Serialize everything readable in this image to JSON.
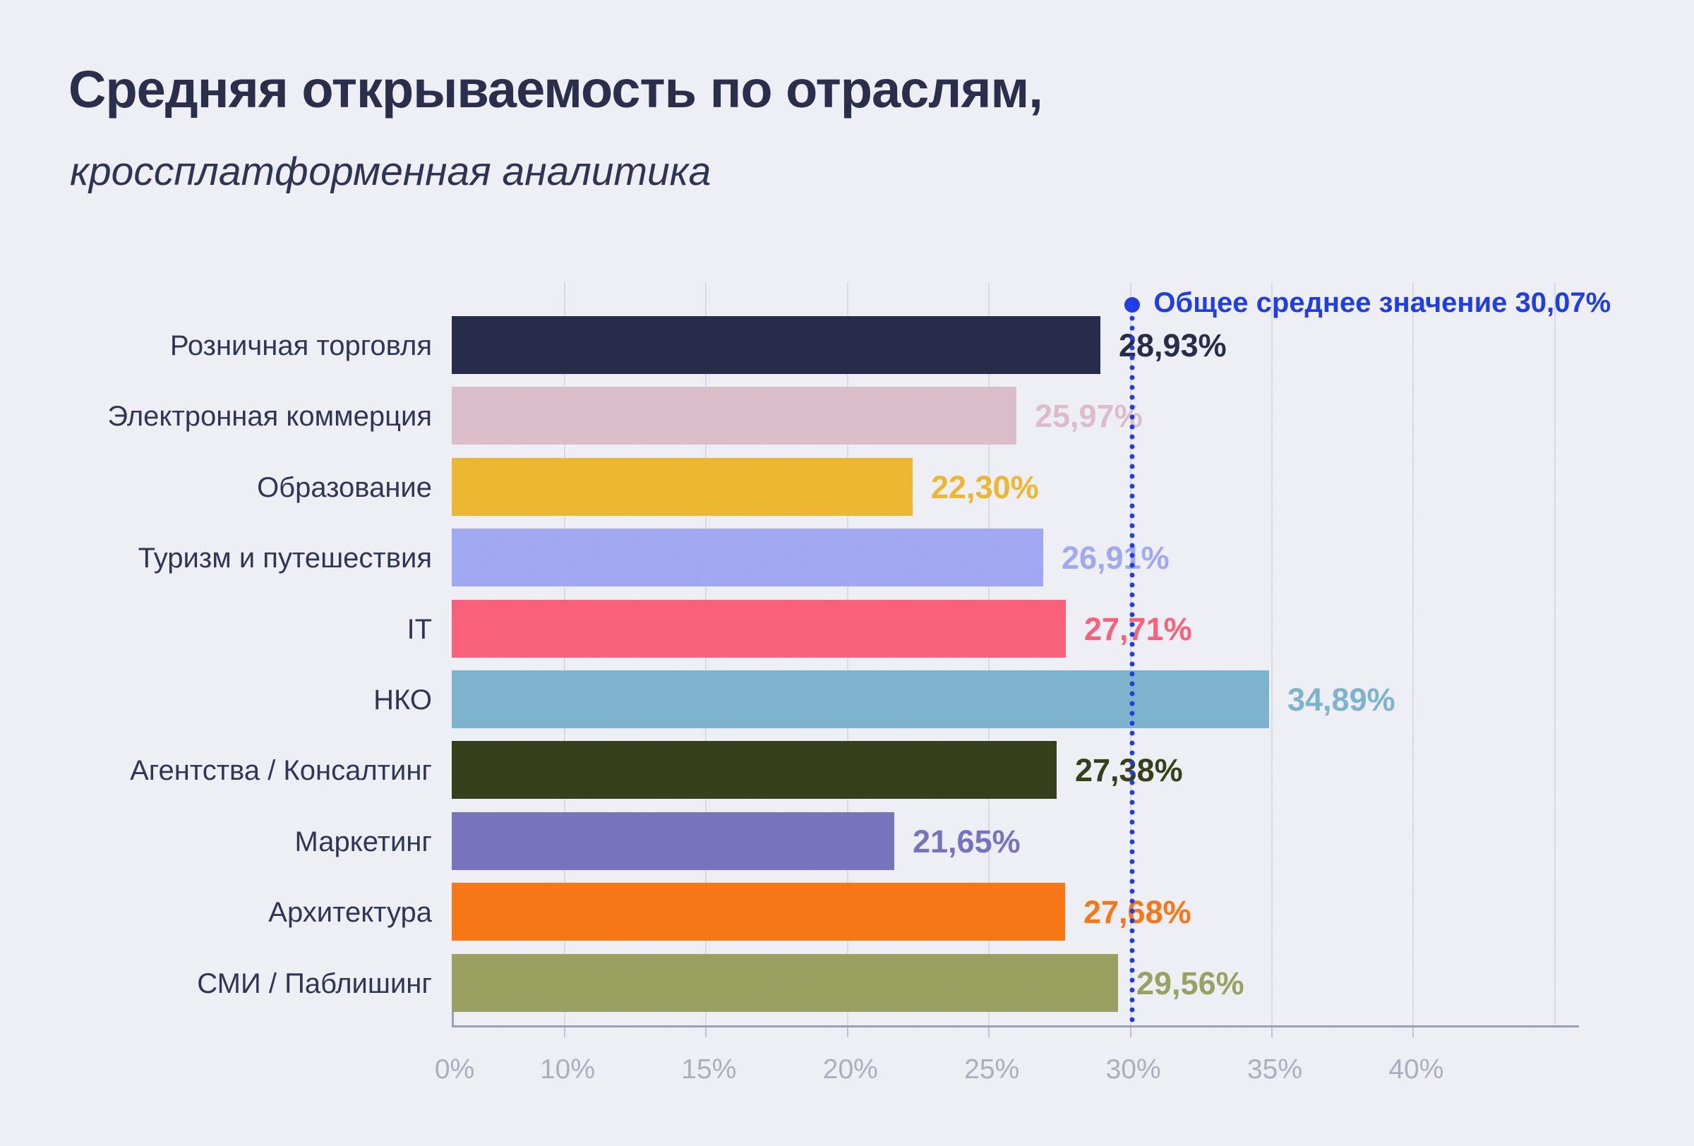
{
  "page": {
    "background": "#eff0f6"
  },
  "title": {
    "main": "Средняя открываемость по отраслям,",
    "subtitle": "кроссплатформенная аналитика",
    "color": "#272b49"
  },
  "chart_data": {
    "type": "bar",
    "orientation": "horizontal",
    "unit": "%",
    "title": "Средняя открываемость по отраслям, кроссплатформенная аналитика",
    "categories": [
      "Розничная торговля",
      "Электронная коммерция",
      "Образование",
      "Туризм и путешествия",
      "IT",
      "НКО",
      "Агентства / Консалтинг",
      "Маркетинг",
      "Архитектура",
      "СМИ / Паблишинг"
    ],
    "values": [
      28.93,
      25.97,
      22.3,
      26.91,
      27.71,
      34.89,
      27.38,
      21.65,
      27.68,
      29.56
    ],
    "value_labels": [
      "28,93%",
      "25,97%",
      "22,30%",
      "26,91%",
      "27,71%",
      "34,89%",
      "27,38%",
      "21,65%",
      "27,68%",
      "29,56%"
    ],
    "bar_colors": [
      "#242947",
      "#dcbdc9",
      "#edb72e",
      "#9fa8f3",
      "#f95f78",
      "#7cb3cd",
      "#323d17",
      "#7572bd",
      "#f97513",
      "#99a05f"
    ],
    "average": {
      "label": "Общее среднее значение 30,07%",
      "value": 30.07,
      "color": "#1c3ae5",
      "line_style": "dotted"
    },
    "x_axis": {
      "tick_labels": [
        "0%",
        "10%",
        "15%",
        "20%",
        "25%",
        "30%",
        "35%",
        "40%"
      ],
      "tick_values": [
        0,
        10,
        15,
        20,
        25,
        30,
        35,
        40
      ],
      "grid_values": [
        10,
        15,
        20,
        25,
        30,
        35,
        40,
        45
      ],
      "range": [
        0,
        45
      ],
      "compressed_zero_segment": true
    },
    "grid": true,
    "legend": false
  },
  "colors": {
    "category_label": "#2d3254",
    "tick_label": "#abaebc",
    "gridline": "#d9dbe5",
    "axis_line": "#9aa0b6"
  }
}
